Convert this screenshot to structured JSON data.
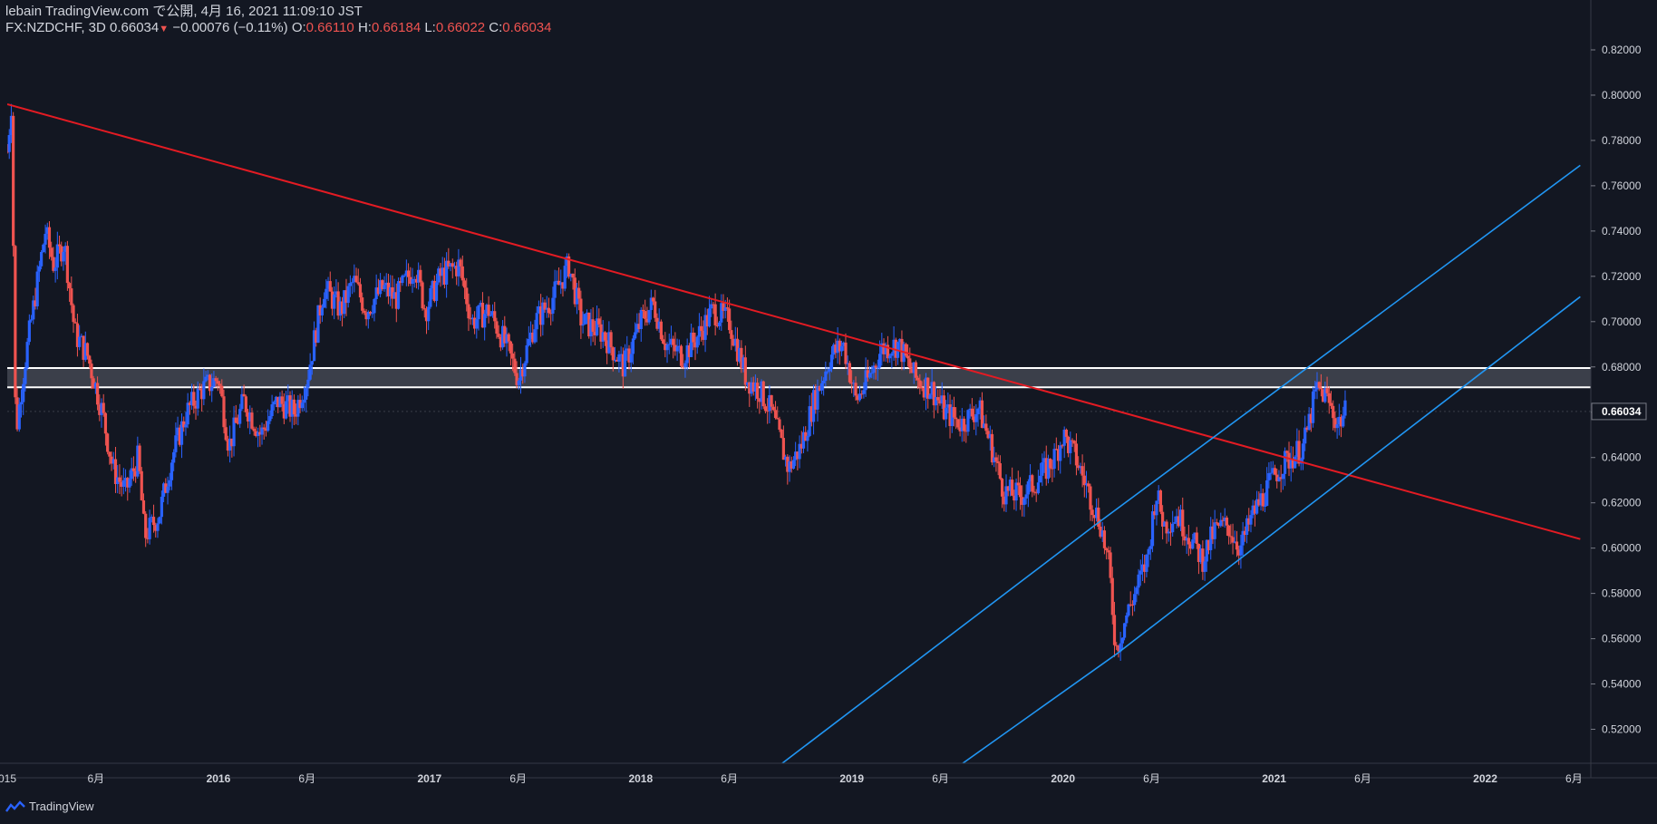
{
  "header": {
    "publish_line": "lebain TradingView.com で公開, 4月 16, 2021 11:09:10 JST",
    "symbol": "FX:NZDCHF, 3D",
    "last": "0.66034",
    "change": "−0.00076 (−0.11%)",
    "o_label": "O:",
    "o_value": "0.66110",
    "h_label": "H:",
    "h_value": "0.66184",
    "l_label": "L:",
    "l_value": "0.66022",
    "c_label": "C:",
    "c_value": "0.66034"
  },
  "footer": {
    "brand": "TradingView"
  },
  "colors": {
    "background": "#131722",
    "up": "#2962ff",
    "down": "#ef5350",
    "trendline": "#e31b23",
    "channel": "#2196f3",
    "zone": "#ffffff"
  },
  "chart_data": {
    "type": "candlestick",
    "symbol": "FX:NZDCHF",
    "interval": "3D",
    "ylim": [
      0.505,
      0.826
    ],
    "y_ticks": [
      "0.82000",
      "0.80000",
      "0.78000",
      "0.76000",
      "0.74000",
      "0.72000",
      "0.70000",
      "0.68000",
      "0.66000",
      "0.64000",
      "0.62000",
      "0.60000",
      "0.58000",
      "0.56000",
      "0.54000",
      "0.52000"
    ],
    "y_tick_values": [
      0.82,
      0.8,
      0.78,
      0.76,
      0.74,
      0.72,
      0.7,
      0.68,
      0.66,
      0.64,
      0.62,
      0.6,
      0.58,
      0.56,
      0.54,
      0.52
    ],
    "x_ticks": [
      {
        "label": "015",
        "t": 2015.0
      },
      {
        "label": "6月",
        "t": 2015.42
      },
      {
        "label": "2016",
        "t": 2016.0
      },
      {
        "label": "6月",
        "t": 2016.42
      },
      {
        "label": "2017",
        "t": 2017.0
      },
      {
        "label": "6月",
        "t": 2017.42
      },
      {
        "label": "2018",
        "t": 2018.0
      },
      {
        "label": "6月",
        "t": 2018.42
      },
      {
        "label": "2019",
        "t": 2019.0
      },
      {
        "label": "6月",
        "t": 2019.42
      },
      {
        "label": "2020",
        "t": 2020.0
      },
      {
        "label": "6月",
        "t": 2020.42
      },
      {
        "label": "2021",
        "t": 2021.0
      },
      {
        "label": "6月",
        "t": 2021.42
      },
      {
        "label": "2022",
        "t": 2022.0
      },
      {
        "label": "6月",
        "t": 2022.42
      }
    ],
    "last_price": 0.66034,
    "last_price_label": "0.66034",
    "price_path": [
      [
        2015.0,
        0.775
      ],
      [
        2015.02,
        0.797
      ],
      [
        2015.04,
        0.65
      ],
      [
        2015.08,
        0.68
      ],
      [
        2015.13,
        0.71
      ],
      [
        2015.18,
        0.74
      ],
      [
        2015.22,
        0.725
      ],
      [
        2015.27,
        0.735
      ],
      [
        2015.32,
        0.695
      ],
      [
        2015.38,
        0.685
      ],
      [
        2015.45,
        0.66
      ],
      [
        2015.5,
        0.635
      ],
      [
        2015.56,
        0.625
      ],
      [
        2015.62,
        0.64
      ],
      [
        2015.65,
        0.605
      ],
      [
        2015.72,
        0.615
      ],
      [
        2015.78,
        0.64
      ],
      [
        2015.85,
        0.66
      ],
      [
        2015.92,
        0.67
      ],
      [
        2016.0,
        0.675
      ],
      [
        2016.05,
        0.645
      ],
      [
        2016.12,
        0.665
      ],
      [
        2016.2,
        0.65
      ],
      [
        2016.28,
        0.665
      ],
      [
        2016.36,
        0.66
      ],
      [
        2016.42,
        0.675
      ],
      [
        2016.5,
        0.715
      ],
      [
        2016.58,
        0.705
      ],
      [
        2016.64,
        0.718
      ],
      [
        2016.7,
        0.705
      ],
      [
        2016.78,
        0.715
      ],
      [
        2016.84,
        0.71
      ],
      [
        2016.93,
        0.725
      ],
      [
        2016.98,
        0.705
      ],
      [
        2017.05,
        0.72
      ],
      [
        2017.14,
        0.725
      ],
      [
        2017.2,
        0.7
      ],
      [
        2017.28,
        0.705
      ],
      [
        2017.36,
        0.69
      ],
      [
        2017.42,
        0.675
      ],
      [
        2017.5,
        0.7
      ],
      [
        2017.58,
        0.71
      ],
      [
        2017.66,
        0.725
      ],
      [
        2017.72,
        0.7
      ],
      [
        2017.82,
        0.695
      ],
      [
        2017.92,
        0.68
      ],
      [
        2018.0,
        0.7
      ],
      [
        2018.06,
        0.708
      ],
      [
        2018.12,
        0.69
      ],
      [
        2018.2,
        0.685
      ],
      [
        2018.28,
        0.695
      ],
      [
        2018.34,
        0.705
      ],
      [
        2018.42,
        0.7
      ],
      [
        2018.5,
        0.675
      ],
      [
        2018.56,
        0.67
      ],
      [
        2018.62,
        0.66
      ],
      [
        2018.7,
        0.635
      ],
      [
        2018.76,
        0.645
      ],
      [
        2018.82,
        0.665
      ],
      [
        2018.9,
        0.685
      ],
      [
        2018.96,
        0.69
      ],
      [
        2019.02,
        0.665
      ],
      [
        2019.08,
        0.675
      ],
      [
        2019.14,
        0.688
      ],
      [
        2019.22,
        0.69
      ],
      [
        2019.3,
        0.675
      ],
      [
        2019.38,
        0.67
      ],
      [
        2019.44,
        0.66
      ],
      [
        2019.52,
        0.655
      ],
      [
        2019.6,
        0.662
      ],
      [
        2019.66,
        0.645
      ],
      [
        2019.72,
        0.625
      ],
      [
        2019.8,
        0.623
      ],
      [
        2019.88,
        0.63
      ],
      [
        2019.96,
        0.64
      ],
      [
        2020.0,
        0.65
      ],
      [
        2020.06,
        0.64
      ],
      [
        2020.12,
        0.625
      ],
      [
        2020.18,
        0.61
      ],
      [
        2020.22,
        0.59
      ],
      [
        2020.25,
        0.555
      ],
      [
        2020.3,
        0.57
      ],
      [
        2020.36,
        0.585
      ],
      [
        2020.4,
        0.595
      ],
      [
        2020.44,
        0.625
      ],
      [
        2020.48,
        0.61
      ],
      [
        2020.54,
        0.615
      ],
      [
        2020.6,
        0.605
      ],
      [
        2020.66,
        0.595
      ],
      [
        2020.72,
        0.608
      ],
      [
        2020.78,
        0.61
      ],
      [
        2020.84,
        0.6
      ],
      [
        2020.9,
        0.615
      ],
      [
        2020.96,
        0.625
      ],
      [
        2021.02,
        0.635
      ],
      [
        2021.08,
        0.64
      ],
      [
        2021.14,
        0.645
      ],
      [
        2021.2,
        0.67
      ],
      [
        2021.24,
        0.668
      ],
      [
        2021.3,
        0.655
      ],
      [
        2021.34,
        0.66
      ]
    ],
    "trendline": {
      "from": [
        2015.0,
        0.796
      ],
      "to": [
        2022.45,
        0.604
      ]
    },
    "zone": {
      "top": 0.6795,
      "bottom": 0.671
    },
    "channel_upper": {
      "from": [
        2020.15,
        0.61
      ],
      "to": [
        2022.45,
        0.769
      ]
    },
    "channel_lower": {
      "from": [
        2020.25,
        0.553
      ],
      "to": [
        2022.45,
        0.711
      ]
    },
    "channel_ext_upper": {
      "from": [
        2018.6,
        0.5
      ],
      "to": [
        2020.15,
        0.61
      ]
    },
    "channel_ext_lower": {
      "from": [
        2019.45,
        0.5
      ],
      "to": [
        2020.25,
        0.553
      ]
    }
  }
}
